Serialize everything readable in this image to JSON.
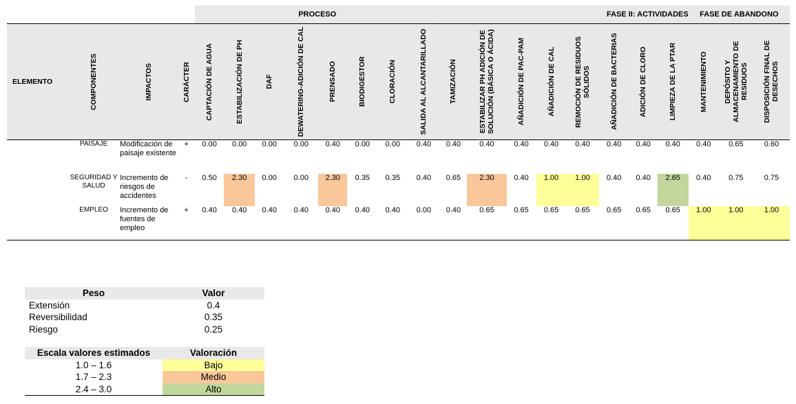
{
  "phases": [
    "PROCESO",
    "FASE II: ACTIVIDADES",
    "FASE DE ABANDONO"
  ],
  "headers": {
    "elemento": "ELEMENTO",
    "componentes": "COMPONENTES",
    "impactos": "IMPACTOS",
    "caracter": "CARÁCTER",
    "activities": [
      "CAPTACIÓN DE AGUA",
      "ESTABILIZACIÓN DE PH",
      "DAF",
      "DEWATERING-ADICIÓN DE CAL",
      "PRENSADO",
      "BIODIGESTOR",
      "CLORACIÓN",
      "SALIDA AL ALCANTARILLADO",
      "TAMIZACIÓN",
      "ESTABILIZAR PH ADICIÓN DE SOLUCIÓN (BÁSICA O ÁCIDA)",
      "AÑADICIÓN DE PAC-PAM",
      "AÑADICIÓN DE CAL",
      "REMOCIÓN DE RESIDUOS SÓLIDOS",
      "AÑADICIÓN DE BACTERIAS",
      "ADICIÓN DE CLORO",
      "LIMPIEZA DE LA PTAR",
      "MANTENIMIENTO",
      "DEPÓSITO Y ALMACENAMIENTO DE RESIDUOS",
      "DISPOSICIÓN FINAL DE DESECHOS"
    ]
  },
  "rows": [
    {
      "elemento": "",
      "componente": "PAISAJE",
      "impacto": "Modificación de paisaje existente",
      "caracter": "+",
      "values": [
        "0.00",
        "0.00",
        "0.00",
        "0.00",
        "0.40",
        "0.00",
        "0.00",
        "0.40",
        "0.40",
        "0.40",
        "0.40",
        "0.40",
        "0.40",
        "0.40",
        "0.40",
        "0.40",
        "0.40",
        "0.65",
        "0.60"
      ],
      "levels": [
        "",
        "",
        "",
        "",
        "",
        "",
        "",
        "",
        "",
        "",
        "",
        "",
        "",
        "",
        "",
        "",
        "",
        "",
        ""
      ]
    },
    {
      "elemento": "",
      "componente": "SEGURIDAD Y SALUD",
      "impacto": "Incremento de riesgos de accidentes",
      "caracter": "-",
      "values": [
        "0.50",
        "2.30",
        "0.00",
        "0.00",
        "2.30",
        "0.35",
        "0.35",
        "0.40",
        "0.65",
        "2.30",
        "0.40",
        "1.00",
        "1.00",
        "0.40",
        "0.40",
        "2.65",
        "0.40",
        "0.75",
        "0.75"
      ],
      "levels": [
        "",
        "medio",
        "",
        "",
        "medio",
        "",
        "",
        "",
        "",
        "medio",
        "",
        "bajo",
        "bajo",
        "",
        "",
        "alto",
        "",
        "",
        ""
      ]
    },
    {
      "elemento": "",
      "componente": "EMPLEO",
      "impacto": "Incremento de fuentes de empleo",
      "caracter": "+",
      "values": [
        "0.40",
        "0.40",
        "0.40",
        "0.40",
        "0.40",
        "0.40",
        "0.40",
        "0.00",
        "0.40",
        "0.65",
        "0.65",
        "0.65",
        "0.65",
        "0.65",
        "0.65",
        "0.65",
        "1.00",
        "1.00",
        "1.00"
      ],
      "levels": [
        "",
        "",
        "",
        "",
        "",
        "",
        "",
        "",
        "",
        "",
        "",
        "",
        "",
        "",
        "",
        "",
        "bajo",
        "bajo",
        "bajo"
      ]
    }
  ],
  "colors": {
    "bajo": "#ffff99",
    "medio": "#f9c79a",
    "alto": "#c3d69b"
  },
  "peso": {
    "header_peso": "Peso",
    "header_valor": "Valor",
    "items": [
      {
        "label": "Extensión",
        "value": "0.4"
      },
      {
        "label": "Reversibilidad",
        "value": "0.35"
      },
      {
        "label": "Riesgo",
        "value": "0.25"
      }
    ]
  },
  "escala": {
    "header_escala": "Escala valores estimados",
    "header_valoracion": "Valoración",
    "items": [
      {
        "range": "1.0 – 1.6",
        "label": "Bajo",
        "level": "bajo"
      },
      {
        "range": "1.7 – 2.3",
        "label": "Medio",
        "level": "medio"
      },
      {
        "range": "2.4 – 3.0",
        "label": "Alto",
        "level": "alto"
      }
    ]
  }
}
